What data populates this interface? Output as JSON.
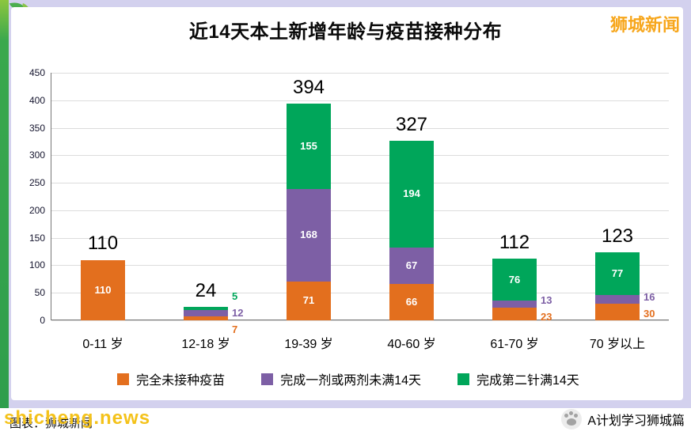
{
  "page": {
    "brand_topright": "狮城新闻",
    "watermark": "shicheng.news",
    "caption_left": "图表：狮城新闻",
    "footer_right": "A计划学习狮城篇"
  },
  "chart_data": {
    "type": "bar",
    "stacked": true,
    "title": "近14天本土新增年龄与疫苗接种分布",
    "categories": [
      "0-11 岁",
      "12-18 岁",
      "19-39 岁",
      "40-60 岁",
      "61-70 岁",
      "70 岁以上"
    ],
    "series": [
      {
        "name": "完全未接种疫苗",
        "color": "#e36f1e",
        "values": [
          110,
          7,
          71,
          66,
          23,
          30
        ]
      },
      {
        "name": "完成一剂或两剂未满14天",
        "color": "#7d5fa5",
        "values": [
          0,
          12,
          168,
          67,
          13,
          16
        ]
      },
      {
        "name": "完成第二针满14天",
        "color": "#00a65a",
        "values": [
          0,
          5,
          155,
          194,
          76,
          77
        ]
      }
    ],
    "totals": [
      110,
      24,
      394,
      327,
      112,
      123
    ],
    "xlabel": "",
    "ylabel": "",
    "ylim": [
      0,
      450
    ],
    "ytick_step": 50,
    "grid": true,
    "legend_position": "bottom",
    "colors": {
      "background_frame": "#d3d1ee",
      "panel": "#ffffff",
      "gridline": "#dcdcdc",
      "brand": "#f7a61b",
      "watermark": "#f4c21a"
    }
  }
}
